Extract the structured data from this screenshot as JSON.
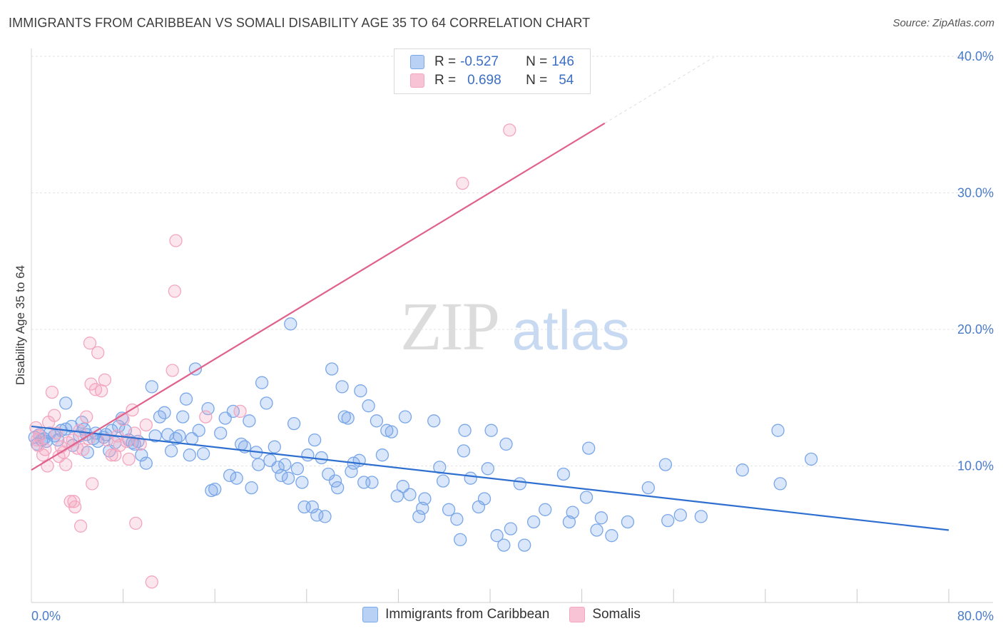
{
  "title": "IMMIGRANTS FROM CARIBBEAN VS SOMALI DISABILITY AGE 35 TO 64 CORRELATION CHART",
  "source": "Source: ZipAtlas.com",
  "watermark": {
    "zip": "ZIP",
    "atlas": "atlas"
  },
  "legend": {
    "rows": [
      {
        "r_label": "R =",
        "r_value": "-0.527",
        "n_label": "N =",
        "n_value": "146"
      },
      {
        "r_label": "R =",
        "r_value": "0.698",
        "n_label": "N =",
        "n_value": "54"
      }
    ]
  },
  "chart_data": {
    "type": "scatter",
    "title": "IMMIGRANTS FROM CARIBBEAN VS SOMALI DISABILITY AGE 35 TO 64 CORRELATION CHART",
    "xlabel": "",
    "ylabel": "Disability Age 35 to 64",
    "xlim": [
      0,
      80
    ],
    "ylim": [
      0,
      40
    ],
    "x_tick_labels": [
      "0.0%",
      "80.0%"
    ],
    "y_tick_labels": [
      "10.0%",
      "20.0%",
      "30.0%",
      "40.0%"
    ],
    "y_ticks": [
      10,
      20,
      30,
      40
    ],
    "grid": "horizontal dashed",
    "legend_position": "top-center",
    "series": [
      {
        "name": "Immigrants from Caribbean",
        "color": "#7aa7e8",
        "trend_color": "#2e6fd0",
        "trend": {
          "x": [
            0,
            80
          ],
          "y": [
            12.9,
            5.3
          ]
        },
        "points": [
          [
            0.3,
            12.1
          ],
          [
            0.5,
            11.6
          ],
          [
            0.7,
            12.3
          ],
          [
            0.9,
            11.9
          ],
          [
            1.1,
            12.0
          ],
          [
            1.3,
            11.8
          ],
          [
            1.6,
            12.4
          ],
          [
            2.0,
            12.2
          ],
          [
            2.3,
            11.9
          ],
          [
            2.6,
            12.6
          ],
          [
            3.0,
            12.7
          ],
          [
            3.0,
            14.6
          ],
          [
            3.5,
            12.9
          ],
          [
            3.6,
            11.5
          ],
          [
            4.2,
            12.2
          ],
          [
            4.4,
            13.2
          ],
          [
            4.6,
            12.7
          ],
          [
            4.8,
            12.3
          ],
          [
            4.9,
            11.0
          ],
          [
            5.4,
            12.0
          ],
          [
            5.6,
            12.4
          ],
          [
            5.8,
            11.8
          ],
          [
            6.3,
            12.1
          ],
          [
            6.5,
            12.3
          ],
          [
            6.8,
            11.1
          ],
          [
            7.0,
            12.6
          ],
          [
            7.3,
            11.7
          ],
          [
            7.6,
            12.9
          ],
          [
            7.9,
            13.5
          ],
          [
            8.2,
            12.6
          ],
          [
            8.5,
            11.9
          ],
          [
            8.8,
            11.7
          ],
          [
            9.0,
            11.6
          ],
          [
            9.3,
            11.8
          ],
          [
            9.6,
            10.8
          ],
          [
            10.0,
            10.2
          ],
          [
            10.5,
            15.8
          ],
          [
            10.8,
            12.2
          ],
          [
            11.2,
            13.6
          ],
          [
            11.6,
            13.9
          ],
          [
            11.9,
            12.3
          ],
          [
            12.2,
            11.1
          ],
          [
            12.6,
            12.0
          ],
          [
            12.9,
            12.2
          ],
          [
            13.2,
            13.6
          ],
          [
            13.5,
            14.9
          ],
          [
            13.8,
            10.8
          ],
          [
            14.0,
            12.0
          ],
          [
            14.3,
            17.1
          ],
          [
            14.6,
            12.6
          ],
          [
            15.0,
            10.9
          ],
          [
            15.4,
            14.2
          ],
          [
            15.7,
            8.2
          ],
          [
            16.0,
            8.3
          ],
          [
            16.5,
            12.4
          ],
          [
            16.9,
            13.5
          ],
          [
            17.3,
            9.3
          ],
          [
            17.6,
            14.0
          ],
          [
            17.9,
            9.1
          ],
          [
            18.3,
            11.6
          ],
          [
            18.6,
            11.4
          ],
          [
            19.0,
            13.3
          ],
          [
            19.2,
            8.4
          ],
          [
            19.6,
            11.0
          ],
          [
            19.8,
            10.1
          ],
          [
            20.1,
            16.1
          ],
          [
            20.5,
            14.6
          ],
          [
            20.8,
            10.4
          ],
          [
            21.2,
            11.4
          ],
          [
            21.5,
            9.9
          ],
          [
            21.8,
            9.3
          ],
          [
            22.1,
            10.1
          ],
          [
            22.4,
            9.1
          ],
          [
            22.6,
            20.4
          ],
          [
            22.9,
            13.1
          ],
          [
            23.2,
            9.8
          ],
          [
            23.6,
            8.8
          ],
          [
            23.8,
            7.0
          ],
          [
            24.1,
            10.8
          ],
          [
            24.5,
            7.0
          ],
          [
            24.7,
            11.9
          ],
          [
            24.9,
            6.4
          ],
          [
            25.3,
            10.6
          ],
          [
            25.6,
            6.3
          ],
          [
            25.9,
            9.4
          ],
          [
            26.2,
            17.1
          ],
          [
            26.5,
            8.9
          ],
          [
            26.7,
            8.4
          ],
          [
            27.1,
            15.8
          ],
          [
            27.3,
            13.6
          ],
          [
            27.6,
            13.5
          ],
          [
            27.9,
            9.6
          ],
          [
            28.1,
            10.2
          ],
          [
            28.6,
            10.4
          ],
          [
            28.7,
            15.5
          ],
          [
            29.0,
            8.8
          ],
          [
            29.4,
            14.4
          ],
          [
            29.7,
            8.8
          ],
          [
            30.1,
            13.3
          ],
          [
            30.6,
            10.8
          ],
          [
            31.0,
            12.6
          ],
          [
            31.4,
            12.5
          ],
          [
            31.9,
            7.8
          ],
          [
            32.4,
            8.5
          ],
          [
            32.6,
            13.6
          ],
          [
            33.0,
            7.9
          ],
          [
            33.8,
            6.3
          ],
          [
            34.1,
            6.9
          ],
          [
            34.3,
            7.6
          ],
          [
            35.1,
            13.3
          ],
          [
            35.6,
            9.9
          ],
          [
            35.9,
            8.9
          ],
          [
            36.4,
            6.8
          ],
          [
            37.1,
            6.1
          ],
          [
            37.4,
            4.6
          ],
          [
            37.7,
            11.1
          ],
          [
            37.8,
            12.6
          ],
          [
            38.3,
            9.1
          ],
          [
            39.0,
            7.0
          ],
          [
            39.5,
            7.6
          ],
          [
            39.8,
            9.8
          ],
          [
            40.1,
            12.6
          ],
          [
            40.6,
            4.9
          ],
          [
            41.2,
            4.2
          ],
          [
            41.4,
            11.6
          ],
          [
            41.8,
            5.4
          ],
          [
            42.6,
            8.7
          ],
          [
            43.0,
            4.2
          ],
          [
            43.8,
            5.9
          ],
          [
            44.8,
            6.8
          ],
          [
            46.4,
            9.4
          ],
          [
            46.9,
            5.9
          ],
          [
            47.2,
            6.6
          ],
          [
            48.4,
            7.7
          ],
          [
            48.6,
            11.3
          ],
          [
            49.3,
            5.3
          ],
          [
            49.7,
            6.2
          ],
          [
            50.6,
            4.9
          ],
          [
            52.0,
            5.9
          ],
          [
            53.8,
            8.4
          ],
          [
            55.3,
            10.1
          ],
          [
            55.5,
            6.0
          ],
          [
            56.6,
            6.4
          ],
          [
            58.4,
            6.3
          ],
          [
            62.0,
            9.7
          ],
          [
            65.1,
            12.6
          ],
          [
            65.3,
            8.7
          ],
          [
            68.0,
            10.5
          ]
        ]
      },
      {
        "name": "Somalis",
        "color": "#f3a6c0",
        "trend_color": "#e0628c",
        "trend": {
          "x": [
            0,
            50
          ],
          "y": [
            9.7,
            35.1
          ]
        },
        "points": [
          [
            0.4,
            12.8
          ],
          [
            0.5,
            11.9
          ],
          [
            0.6,
            11.5
          ],
          [
            0.7,
            12.2
          ],
          [
            1.0,
            10.8
          ],
          [
            1.2,
            11.2
          ],
          [
            1.4,
            10.0
          ],
          [
            1.5,
            13.2
          ],
          [
            1.8,
            15.4
          ],
          [
            2.0,
            13.7
          ],
          [
            2.2,
            12.4
          ],
          [
            2.4,
            10.7
          ],
          [
            2.6,
            11.4
          ],
          [
            2.8,
            11.0
          ],
          [
            3.0,
            10.1
          ],
          [
            3.2,
            11.7
          ],
          [
            3.4,
            7.4
          ],
          [
            3.6,
            11.9
          ],
          [
            3.7,
            7.4
          ],
          [
            3.8,
            7.0
          ],
          [
            4.0,
            11.3
          ],
          [
            4.2,
            12.6
          ],
          [
            4.3,
            5.6
          ],
          [
            4.5,
            11.2
          ],
          [
            4.8,
            13.6
          ],
          [
            5.0,
            12.0
          ],
          [
            5.1,
            19.0
          ],
          [
            5.2,
            16.0
          ],
          [
            5.3,
            8.7
          ],
          [
            5.6,
            15.6
          ],
          [
            5.8,
            18.3
          ],
          [
            6.1,
            15.5
          ],
          [
            6.4,
            16.3
          ],
          [
            6.6,
            11.9
          ],
          [
            7.0,
            10.8
          ],
          [
            7.3,
            10.8
          ],
          [
            7.5,
            12.2
          ],
          [
            7.7,
            11.5
          ],
          [
            8.0,
            13.4
          ],
          [
            8.3,
            11.8
          ],
          [
            8.5,
            10.5
          ],
          [
            8.8,
            14.1
          ],
          [
            9.0,
            12.4
          ],
          [
            9.1,
            5.8
          ],
          [
            9.5,
            11.6
          ],
          [
            10.0,
            13.0
          ],
          [
            10.5,
            1.5
          ],
          [
            12.3,
            17.0
          ],
          [
            12.5,
            22.8
          ],
          [
            12.6,
            26.5
          ],
          [
            15.2,
            13.6
          ],
          [
            18.2,
            14.0
          ],
          [
            37.6,
            30.7
          ],
          [
            41.7,
            34.6
          ]
        ]
      }
    ]
  }
}
